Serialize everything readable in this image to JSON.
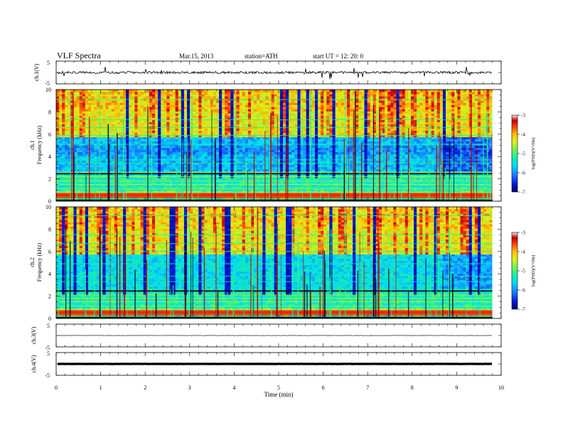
{
  "header": {
    "title": "VLF  Spectra",
    "date": "Mar.15, 2013",
    "station": "station=ATH",
    "start_time": "start  UT =   12: 20: 0"
  },
  "colors": {
    "colormap": [
      "#000070",
      "#0018d8",
      "#1a7cff",
      "#00d8ff",
      "#19f0a0",
      "#7af050",
      "#d8f020",
      "#ffc000",
      "#ff4010",
      "#c00000",
      "#ffffff"
    ]
  },
  "chart_data": [
    {
      "type": "line",
      "panel": "ch1",
      "ylabel": "ch.1(V)",
      "ylim": [
        -5,
        5
      ],
      "yticks": [
        "5",
        "-5"
      ],
      "series": [
        {
          "description": "noisy waveform near zero with sporadic spikes",
          "baseline": 0,
          "noise_amplitude": 0.5
        }
      ]
    },
    {
      "type": "heatmap",
      "panel": "ch1_spectrogram",
      "ylabel": "Frequency  (kHz)",
      "channel_label": "ch.1",
      "ylim": [
        0,
        10
      ],
      "yticks": [
        "0",
        "2",
        "4",
        "6",
        "8",
        "10"
      ],
      "colorbar": {
        "label": "log(PSD)(V²/Hz)",
        "range": [
          -7,
          -3
        ],
        "ticks": [
          "-3",
          "-4",
          "-5",
          "-6",
          "-7"
        ]
      }
    },
    {
      "type": "heatmap",
      "panel": "ch2_spectrogram",
      "ylabel": "Frequency  (kHz)",
      "channel_label": "ch.2",
      "ylim": [
        0,
        10
      ],
      "yticks": [
        "0",
        "2",
        "4",
        "6",
        "8",
        "10"
      ],
      "colorbar": {
        "label": "log(PSD)(V²/Hz)",
        "range": [
          -7,
          -3
        ],
        "ticks": [
          "-3",
          "-4",
          "-5",
          "-6",
          "-7"
        ]
      }
    },
    {
      "type": "line",
      "panel": "ch3",
      "ylabel": "ch.3(V)",
      "ylim": [
        -5,
        5
      ],
      "yticks": [
        "5",
        "-5"
      ],
      "series": [
        {
          "description": "flat trace",
          "baseline": 0
        }
      ]
    },
    {
      "type": "line",
      "panel": "ch4",
      "ylabel": "ch.4(V)",
      "ylim": [
        -5,
        5
      ],
      "yticks": [
        "5",
        "-5"
      ],
      "series": [
        {
          "description": "flat thick trace",
          "baseline": 0
        }
      ]
    }
  ],
  "xaxis": {
    "label": "Time  (min)",
    "range": [
      0,
      10
    ],
    "data_end": 9.8,
    "ticks": [
      "0",
      "1",
      "2",
      "3",
      "4",
      "5",
      "6",
      "7",
      "8",
      "9",
      "10"
    ]
  }
}
